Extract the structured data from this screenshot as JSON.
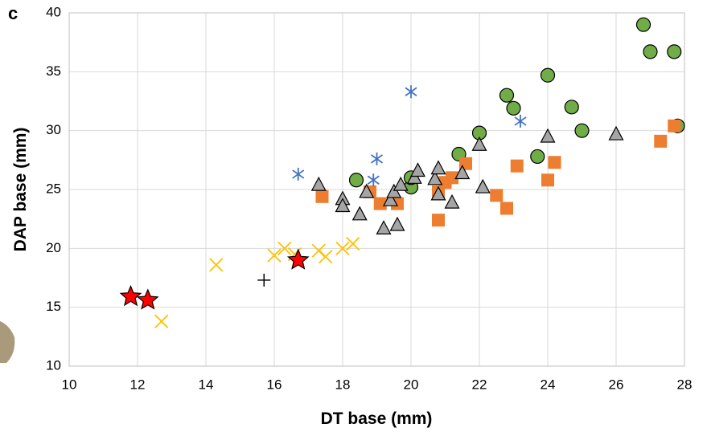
{
  "chart_data": {
    "type": "scatter",
    "panel_label": "c",
    "x_label": "DT base (mm)",
    "y_label": "DAP base (mm)",
    "xlim": [
      10,
      28
    ],
    "ylim": [
      10,
      40
    ],
    "xticks": [
      10,
      12,
      14,
      16,
      18,
      20,
      22,
      24,
      26,
      28
    ],
    "yticks": [
      10,
      15,
      20,
      25,
      30,
      35,
      40
    ],
    "grid": true,
    "series": [
      {
        "marker": "circle",
        "color": "#70ad47",
        "x": [
          18.4,
          20,
          20,
          21.4,
          22,
          22.8,
          23,
          23.7,
          24,
          24.7,
          25,
          26.8,
          27,
          27.7,
          27.8
        ],
        "y": [
          25.8,
          25.2,
          26,
          28,
          29.8,
          33,
          31.9,
          27.8,
          34.7,
          32,
          30,
          39,
          36.7,
          36.7,
          30.4
        ]
      },
      {
        "marker": "square",
        "color": "#ed7d31",
        "x": [
          17.4,
          18.8,
          19.1,
          19.6,
          20.8,
          20.8,
          21,
          21.2,
          21.6,
          22.5,
          22.8,
          23.1,
          24,
          24.2,
          27.3,
          27.7
        ],
        "y": [
          24.4,
          24.8,
          23.8,
          23.8,
          22.4,
          24.8,
          25.6,
          26,
          27.2,
          24.5,
          23.4,
          27,
          25.8,
          27.3,
          29.1,
          30.4
        ]
      },
      {
        "marker": "triangle",
        "color": "#a5a5a5",
        "x": [
          17.3,
          18,
          18,
          18.5,
          18.7,
          19.2,
          19.4,
          19.5,
          19.6,
          19.7,
          20.1,
          20.2,
          20.7,
          20.8,
          20.8,
          21.2,
          21.5,
          22,
          22.1,
          24,
          26
        ],
        "y": [
          25.4,
          24.2,
          23.6,
          22.9,
          24.8,
          21.7,
          24.1,
          24.8,
          22,
          25.4,
          26,
          26.6,
          25.9,
          24.6,
          26.8,
          23.9,
          26.4,
          28.8,
          25.2,
          29.5,
          29.7
        ]
      },
      {
        "marker": "asterisk",
        "color": "#4472c4",
        "x": [
          16.7,
          18.9,
          19,
          20,
          23.2
        ],
        "y": [
          26.3,
          25.8,
          27.6,
          33.3,
          30.8
        ]
      },
      {
        "marker": "cross",
        "color": "#ffc000",
        "x": [
          12.7,
          14.3,
          16,
          16.3,
          16.6,
          17.3,
          17.5,
          18,
          18.3
        ],
        "y": [
          13.8,
          18.6,
          19.4,
          20,
          19.5,
          19.8,
          19.3,
          20,
          20.4
        ]
      },
      {
        "marker": "plus",
        "color": "#000000",
        "x": [
          15.7
        ],
        "y": [
          17.3
        ]
      },
      {
        "marker": "star",
        "color": "#ff0000",
        "x": [
          11.8,
          12.3,
          16.7
        ],
        "y": [
          15.9,
          15.6,
          19
        ]
      }
    ]
  }
}
